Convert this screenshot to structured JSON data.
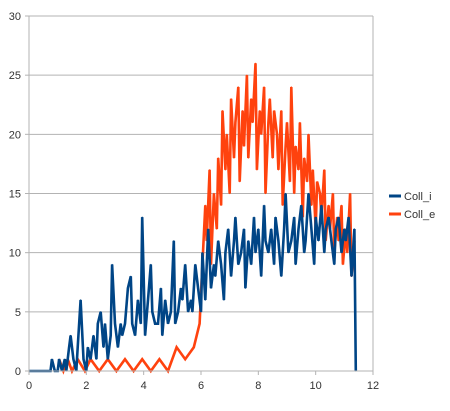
{
  "chart_data": {
    "type": "line",
    "xlim": [
      0,
      12
    ],
    "ylim": [
      0,
      30
    ],
    "x_ticks": [
      0,
      2,
      4,
      6,
      8,
      10,
      12
    ],
    "y_ticks": [
      0,
      5,
      10,
      15,
      20,
      25,
      30
    ],
    "grid": "horizontal",
    "legend_position": "right",
    "series": [
      {
        "name": "Coll_i",
        "color": "#004586",
        "x": [
          0.0,
          0.15,
          0.3,
          0.45,
          0.6,
          0.75,
          0.8,
          0.9,
          1.0,
          1.05,
          1.15,
          1.25,
          1.3,
          1.4,
          1.45,
          1.55,
          1.65,
          1.7,
          1.8,
          1.9,
          2.0,
          2.05,
          2.15,
          2.25,
          2.35,
          2.4,
          2.5,
          2.6,
          2.65,
          2.75,
          2.85,
          2.9,
          3.0,
          3.1,
          3.2,
          3.25,
          3.35,
          3.45,
          3.55,
          3.6,
          3.7,
          3.8,
          3.9,
          3.95,
          4.05,
          4.15,
          4.25,
          4.3,
          4.4,
          4.5,
          4.6,
          4.65,
          4.75,
          4.85,
          4.95,
          5.05,
          5.1,
          5.2,
          5.3,
          5.35,
          5.45,
          5.55,
          5.65,
          5.7,
          5.8,
          5.9,
          6.0,
          6.05,
          6.15,
          6.25,
          6.35,
          6.45,
          6.5,
          6.6,
          6.7,
          6.8,
          6.85,
          6.95,
          7.05,
          7.15,
          7.2,
          7.3,
          7.4,
          7.5,
          7.55,
          7.65,
          7.75,
          7.85,
          7.9,
          8.0,
          8.1,
          8.2,
          8.25,
          8.35,
          8.45,
          8.55,
          8.6,
          8.7,
          8.8,
          8.9,
          8.95,
          9.05,
          9.15,
          9.25,
          9.3,
          9.4,
          9.5,
          9.6,
          9.65,
          9.75,
          9.85,
          9.95,
          10.0,
          10.1,
          10.2,
          10.3,
          10.35,
          10.45,
          10.55,
          10.65,
          10.7,
          10.8,
          10.9,
          11.0,
          11.05,
          11.15,
          11.25,
          11.35,
          11.4
        ],
        "values": [
          0,
          0,
          0,
          0,
          0,
          0,
          1,
          0,
          0,
          1,
          0,
          1,
          0,
          2,
          3,
          1,
          0,
          2,
          6,
          1,
          0,
          2,
          1,
          3,
          1,
          4,
          5,
          2,
          4,
          1,
          3,
          9,
          4,
          2,
          4,
          3,
          4,
          7,
          8,
          4,
          3,
          6,
          4,
          13,
          3,
          6,
          9,
          5,
          4,
          4,
          7,
          3,
          6,
          4,
          5,
          11,
          4,
          5,
          7,
          6,
          9,
          5,
          6,
          5,
          9,
          7,
          5,
          10,
          6,
          12,
          7,
          9,
          8,
          11,
          9,
          6,
          10,
          12,
          8,
          11,
          13,
          9,
          10,
          12,
          7,
          11,
          9,
          13,
          10,
          12,
          8,
          14,
          11,
          10,
          12,
          9,
          13,
          11,
          8,
          12,
          15,
          10,
          11,
          13,
          9,
          12,
          14,
          10,
          11,
          15,
          12,
          9,
          13,
          11,
          14,
          10,
          12,
          13,
          11,
          9,
          12,
          13,
          10,
          12,
          11,
          13,
          8,
          12,
          0
        ]
      },
      {
        "name": "Coll_e",
        "color": "#ff420e",
        "x": [
          1.05,
          1.2,
          1.35,
          1.5,
          1.7,
          1.95,
          2.15,
          2.45,
          2.75,
          3.05,
          3.35,
          3.65,
          3.95,
          4.25,
          4.55,
          4.85,
          5.15,
          5.45,
          5.75,
          5.95,
          6.05,
          6.15,
          6.2,
          6.3,
          6.35,
          6.45,
          6.55,
          6.6,
          6.7,
          6.75,
          6.85,
          6.9,
          7.0,
          7.05,
          7.15,
          7.2,
          7.3,
          7.35,
          7.45,
          7.5,
          7.6,
          7.65,
          7.75,
          7.8,
          7.9,
          7.95,
          8.05,
          8.1,
          8.2,
          8.25,
          8.35,
          8.4,
          8.5,
          8.55,
          8.65,
          8.7,
          8.8,
          8.85,
          8.95,
          9.0,
          9.1,
          9.15,
          9.25,
          9.3,
          9.4,
          9.45,
          9.55,
          9.6,
          9.7,
          9.75,
          9.85,
          9.9,
          10.0,
          10.05,
          10.15,
          10.2,
          10.3,
          10.35,
          10.45,
          10.5,
          10.6,
          10.65,
          10.75,
          10.8,
          10.9,
          10.95,
          11.05,
          11.1,
          11.2,
          11.25,
          11.35
        ],
        "values": [
          1,
          0,
          1,
          0,
          1,
          0,
          1,
          0,
          1,
          0,
          1,
          0,
          1,
          0,
          1,
          0,
          2,
          1,
          2,
          4,
          9,
          14,
          11,
          17,
          9,
          15,
          12,
          18,
          14,
          22,
          17,
          20,
          15,
          23,
          18,
          21,
          24,
          16,
          22,
          19,
          25,
          18,
          23,
          21,
          26,
          17,
          22,
          20,
          24,
          15,
          21,
          23,
          18,
          22,
          20,
          17,
          22,
          14,
          19,
          21,
          16,
          24,
          15,
          19,
          17,
          21,
          13,
          18,
          16,
          20,
          14,
          17,
          12,
          16,
          15,
          13,
          17,
          11,
          14,
          12,
          15,
          10,
          13,
          11,
          14,
          9,
          12,
          10,
          15,
          8,
          11
        ]
      }
    ]
  }
}
